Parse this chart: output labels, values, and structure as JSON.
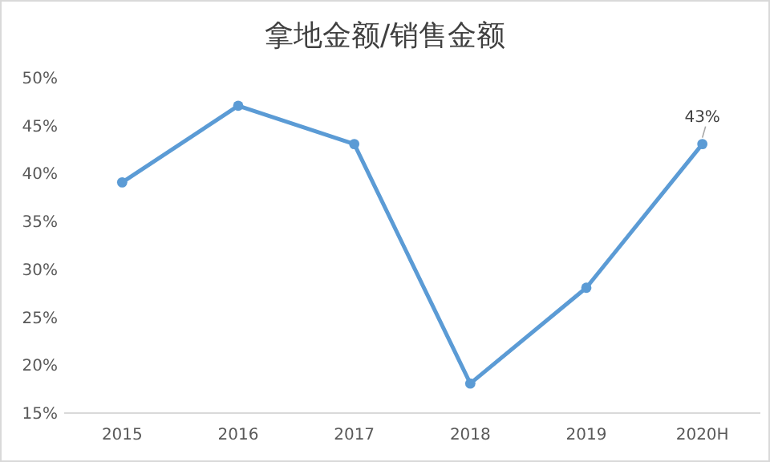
{
  "chart_data": {
    "type": "line",
    "title": "拿地金额/销售金额",
    "categories": [
      "2015",
      "2016",
      "2017",
      "2018",
      "2019",
      "2020H"
    ],
    "series": [
      {
        "color": "#5b9bd5",
        "values": [
          39,
          47,
          43,
          18,
          28,
          43
        ],
        "value_labels": [
          null,
          null,
          null,
          null,
          null,
          "43%"
        ]
      }
    ],
    "ylim": [
      15,
      50
    ],
    "yticks": [
      {
        "value": 15,
        "label": "15%"
      },
      {
        "value": 20,
        "label": "20%"
      },
      {
        "value": 25,
        "label": "25%"
      },
      {
        "value": 30,
        "label": "30%"
      },
      {
        "value": 35,
        "label": "35%"
      },
      {
        "value": 40,
        "label": "40%"
      },
      {
        "value": 45,
        "label": "45%"
      },
      {
        "value": 50,
        "label": "50%"
      }
    ],
    "marker": "circle",
    "line_style": "solid"
  }
}
